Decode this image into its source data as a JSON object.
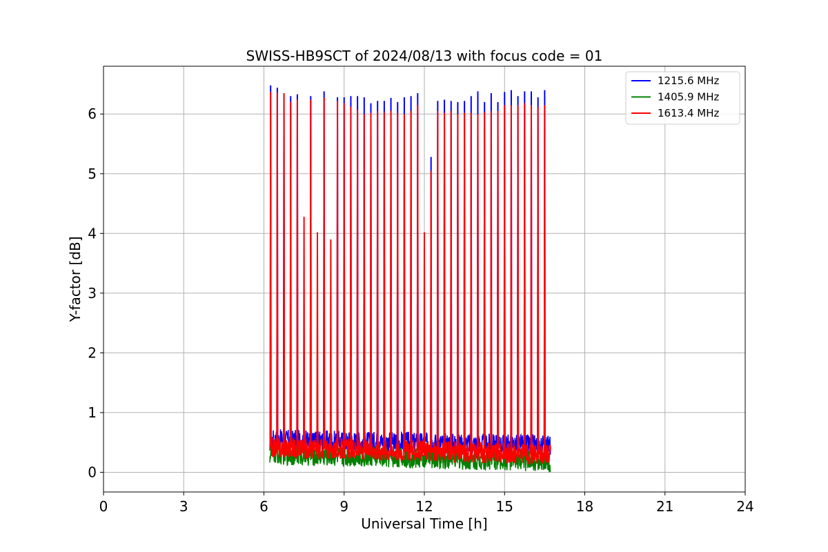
{
  "chart_data": {
    "type": "line",
    "title": "SWISS-HB9SCT of 2024/08/13 with focus code = 01",
    "xlabel": "Universal Time [h]",
    "ylabel": "Y-factor [dB]",
    "xlim": [
      0,
      24
    ],
    "ylim": [
      -0.33,
      6.8
    ],
    "xticks": [
      0,
      3,
      6,
      9,
      12,
      15,
      18,
      21,
      24
    ],
    "yticks": [
      0,
      1,
      2,
      3,
      4,
      5,
      6
    ],
    "grid": true,
    "legend_position": "top-right",
    "observation_span": [
      6.22,
      16.72
    ],
    "series": [
      {
        "name": "1215.6 MHz",
        "color": "#0000ff",
        "baseline_start": 0.55,
        "baseline_end": 0.45,
        "peak_times": [
          6.25,
          6.5,
          6.75,
          7.0,
          7.25,
          7.75,
          8.25,
          8.75,
          9.0,
          9.25,
          9.5,
          9.75,
          10.0,
          10.25,
          10.5,
          10.75,
          11.0,
          11.25,
          11.5,
          11.75,
          12.25,
          12.5,
          12.75,
          13.0,
          13.25,
          13.5,
          13.75,
          14.0,
          14.25,
          14.5,
          14.75,
          15.0,
          15.25,
          15.5,
          15.75,
          16.0,
          16.25,
          16.5
        ],
        "peak_values": [
          6.48,
          6.44,
          6.35,
          6.3,
          6.33,
          6.3,
          6.38,
          6.28,
          6.28,
          6.3,
          6.3,
          6.28,
          6.18,
          6.22,
          6.22,
          6.27,
          6.2,
          6.28,
          6.3,
          6.35,
          5.28,
          6.22,
          6.24,
          6.22,
          6.2,
          6.22,
          6.3,
          6.38,
          6.2,
          6.35,
          6.2,
          6.37,
          6.4,
          6.3,
          6.38,
          6.38,
          6.28,
          6.4
        ]
      },
      {
        "name": "1405.9 MHz",
        "color": "#008000",
        "baseline_start": 0.3,
        "baseline_end": 0.18,
        "peak_times": [],
        "peak_values": []
      },
      {
        "name": "1613.4 MHz",
        "color": "#ff0000",
        "baseline_start": 0.42,
        "baseline_end": 0.3,
        "peak_times": [
          6.25,
          6.5,
          6.75,
          7.0,
          7.25,
          7.5,
          7.75,
          8.0,
          8.25,
          8.5,
          8.75,
          9.0,
          9.25,
          9.5,
          9.75,
          10.0,
          10.25,
          10.5,
          10.75,
          11.0,
          11.25,
          11.5,
          11.75,
          12.0,
          12.25,
          12.5,
          12.75,
          13.0,
          13.25,
          13.5,
          13.75,
          14.0,
          14.25,
          14.5,
          14.75,
          15.0,
          15.25,
          15.5,
          15.75,
          16.0,
          16.25,
          16.5
        ],
        "peak_values": [
          6.37,
          6.36,
          6.35,
          6.2,
          6.24,
          4.28,
          6.24,
          4.02,
          6.28,
          3.9,
          6.22,
          6.18,
          6.12,
          6.07,
          6.0,
          6.02,
          6.05,
          6.03,
          6.05,
          6.02,
          6.0,
          6.05,
          6.15,
          4.02,
          5.05,
          6.05,
          6.02,
          6.05,
          6.0,
          6.02,
          6.02,
          6.0,
          6.03,
          6.05,
          6.05,
          6.15,
          6.15,
          6.15,
          6.18,
          6.15,
          6.12,
          6.15
        ]
      }
    ]
  }
}
